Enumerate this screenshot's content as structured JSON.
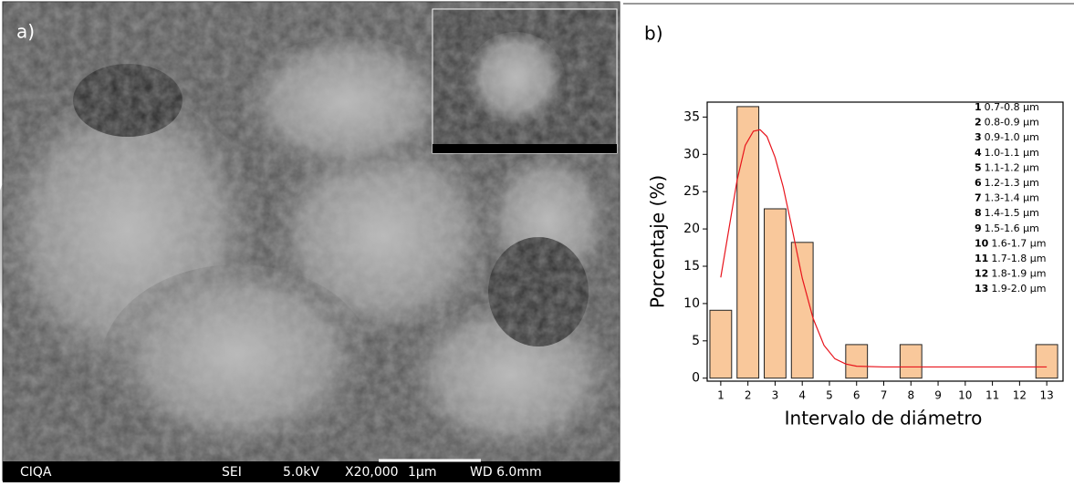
{
  "sem_image": {
    "panel_label": "a)",
    "footer": [
      "CIQA",
      "SEI",
      "5.0kV",
      "X20,000",
      "1μm",
      "WD 6.0mm"
    ]
  },
  "chart_data": {
    "type": "bar",
    "panel_label": "b)",
    "x_label": "Intervalo de diámetro",
    "y_label": "Porcentaje (%)",
    "x": [
      1,
      2,
      3,
      4,
      5,
      6,
      7,
      8,
      9,
      10,
      11,
      12,
      13
    ],
    "values": [
      9.1,
      36.4,
      22.7,
      18.2,
      0,
      4.5,
      0,
      4.5,
      0,
      0,
      0,
      0,
      4.5
    ],
    "color": "#f9c89b",
    "fit": {
      "color": "#e8141c",
      "x": [
        1,
        1.3,
        1.6,
        1.9,
        2.2,
        2.45,
        2.7,
        3,
        3.3,
        3.6,
        4,
        4.4,
        4.8,
        5.2,
        5.6,
        6,
        7,
        8,
        10,
        13
      ],
      "values": [
        13.5,
        20,
        26.5,
        31.2,
        33.1,
        33.3,
        32.4,
        29.6,
        25.6,
        20.5,
        13.4,
        8,
        4.4,
        2.6,
        1.9,
        1.6,
        1.5,
        1.5,
        1.5,
        1.5
      ]
    },
    "xlim": [
      0.5,
      13.6
    ],
    "ylim": [
      -0.4,
      37
    ],
    "xticks": [
      1,
      2,
      3,
      4,
      5,
      6,
      7,
      8,
      9,
      10,
      11,
      12,
      13
    ],
    "yticks": [
      0,
      5,
      10,
      15,
      20,
      25,
      30,
      35
    ],
    "legend": [
      {
        "n": "1",
        "text": "0.7-0.8 µm"
      },
      {
        "n": "2",
        "text": "0.8-0.9 µm"
      },
      {
        "n": "3",
        "text": "0.9-1.0 µm"
      },
      {
        "n": "4",
        "text": "1.0-1.1 µm"
      },
      {
        "n": "5",
        "text": "1.1-1.2 µm"
      },
      {
        "n": "6",
        "text": "1.2-1.3 µm"
      },
      {
        "n": "7",
        "text": "1.3-1.4 µm"
      },
      {
        "n": "8",
        "text": "1.4-1.5 µm"
      },
      {
        "n": "9",
        "text": "1.5-1.6 µm"
      },
      {
        "n": "10",
        "text": "1.6-1.7 µm"
      },
      {
        "n": "11",
        "text": "1.7-1.8 µm"
      },
      {
        "n": "12",
        "text": "1.8-1.9 µm"
      },
      {
        "n": "13",
        "text": "1.9-2.0 µm"
      }
    ]
  }
}
